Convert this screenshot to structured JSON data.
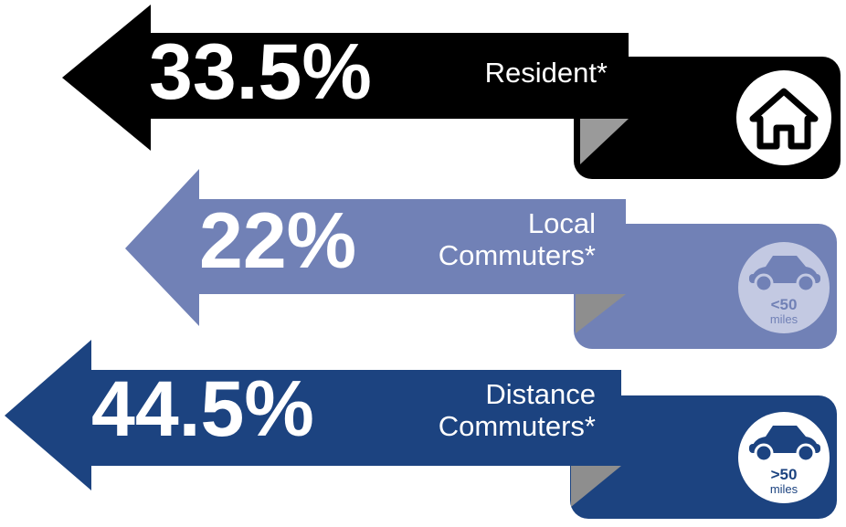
{
  "items": [
    {
      "percent": "33.5%",
      "label": [
        "Resident*"
      ]
    },
    {
      "percent": "22%",
      "label": [
        "Local",
        "Commuters*"
      ],
      "icon": {
        "distance": "<50",
        "unit": "miles"
      }
    },
    {
      "percent": "44.5%",
      "label": [
        "Distance",
        "Commuters*"
      ],
      "icon": {
        "distance": ">50",
        "unit": "miles"
      }
    }
  ]
}
